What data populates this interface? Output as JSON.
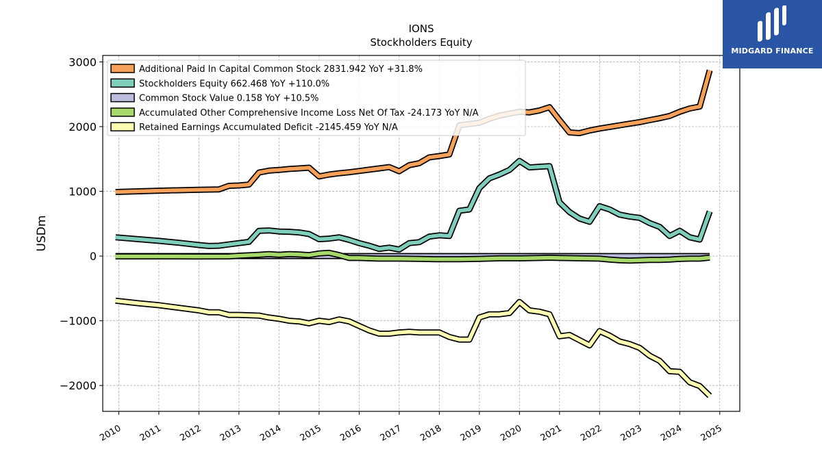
{
  "chart_data": {
    "type": "line",
    "title": "IONS",
    "subtitle": "Stockholders  Equity",
    "ylabel": "USDm",
    "xlabel": "",
    "xlim": [
      2009.6,
      2025.5
    ],
    "ylim": [
      -2400,
      3100
    ],
    "yticks": [
      -2000,
      -1000,
      0,
      1000,
      2000,
      3000
    ],
    "ytick_labels": [
      "−2000",
      "−1000",
      "0",
      "1000",
      "2000",
      "3000"
    ],
    "xticks": [
      2010,
      2011,
      2012,
      2013,
      2014,
      2015,
      2016,
      2017,
      2018,
      2019,
      2020,
      2021,
      2022,
      2023,
      2024,
      2025
    ],
    "xtick_labels": [
      "2010",
      "2011",
      "2012",
      "2013",
      "2014",
      "2015",
      "2016",
      "2017",
      "2018",
      "2019",
      "2020",
      "2021",
      "2022",
      "2023",
      "2024",
      "2025"
    ],
    "grid": true,
    "legend_position": "top-left",
    "series": [
      {
        "name": "Additional Paid In Capital Common Stock  2831.942 YoY +31.8%",
        "color": "#f5a15a",
        "points": [
          [
            2009.92,
            990
          ],
          [
            2011.0,
            1010
          ],
          [
            2012.0,
            1025
          ],
          [
            2012.5,
            1030
          ],
          [
            2012.75,
            1085
          ],
          [
            2013.0,
            1090
          ],
          [
            2013.25,
            1105
          ],
          [
            2013.5,
            1290
          ],
          [
            2013.75,
            1320
          ],
          [
            2014.0,
            1330
          ],
          [
            2014.25,
            1345
          ],
          [
            2014.5,
            1355
          ],
          [
            2014.75,
            1365
          ],
          [
            2015.0,
            1230
          ],
          [
            2015.25,
            1260
          ],
          [
            2015.5,
            1280
          ],
          [
            2015.75,
            1295
          ],
          [
            2016.0,
            1315
          ],
          [
            2016.25,
            1335
          ],
          [
            2016.5,
            1355
          ],
          [
            2016.75,
            1375
          ],
          [
            2017.0,
            1310
          ],
          [
            2017.25,
            1405
          ],
          [
            2017.5,
            1435
          ],
          [
            2017.75,
            1525
          ],
          [
            2018.0,
            1545
          ],
          [
            2018.25,
            1570
          ],
          [
            2018.5,
            2020
          ],
          [
            2018.75,
            2040
          ],
          [
            2019.0,
            2060
          ],
          [
            2019.25,
            2120
          ],
          [
            2019.5,
            2170
          ],
          [
            2019.75,
            2200
          ],
          [
            2020.0,
            2230
          ],
          [
            2020.25,
            2220
          ],
          [
            2020.5,
            2250
          ],
          [
            2020.75,
            2300
          ],
          [
            2021.0,
            2100
          ],
          [
            2021.25,
            1910
          ],
          [
            2021.5,
            1900
          ],
          [
            2021.75,
            1940
          ],
          [
            2022.0,
            1970
          ],
          [
            2022.25,
            1995
          ],
          [
            2022.5,
            2020
          ],
          [
            2022.75,
            2045
          ],
          [
            2023.0,
            2070
          ],
          [
            2023.25,
            2100
          ],
          [
            2023.5,
            2130
          ],
          [
            2023.75,
            2165
          ],
          [
            2024.0,
            2230
          ],
          [
            2024.25,
            2280
          ],
          [
            2024.5,
            2310
          ],
          [
            2024.75,
            2870
          ]
        ]
      },
      {
        "name": "Stockholders Equity  662.468 YoY +110.0%",
        "color": "#7fcdbb",
        "points": [
          [
            2009.92,
            290
          ],
          [
            2010.5,
            260
          ],
          [
            2011.0,
            235
          ],
          [
            2011.5,
            205
          ],
          [
            2012.0,
            170
          ],
          [
            2012.25,
            155
          ],
          [
            2012.5,
            160
          ],
          [
            2012.75,
            180
          ],
          [
            2013.0,
            200
          ],
          [
            2013.25,
            220
          ],
          [
            2013.5,
            390
          ],
          [
            2013.75,
            395
          ],
          [
            2014.0,
            380
          ],
          [
            2014.25,
            375
          ],
          [
            2014.5,
            365
          ],
          [
            2014.75,
            340
          ],
          [
            2015.0,
            260
          ],
          [
            2015.25,
            270
          ],
          [
            2015.5,
            290
          ],
          [
            2015.75,
            250
          ],
          [
            2016.0,
            200
          ],
          [
            2016.25,
            160
          ],
          [
            2016.5,
            110
          ],
          [
            2016.75,
            130
          ],
          [
            2017.0,
            100
          ],
          [
            2017.25,
            200
          ],
          [
            2017.5,
            215
          ],
          [
            2017.75,
            300
          ],
          [
            2018.0,
            320
          ],
          [
            2018.25,
            310
          ],
          [
            2018.5,
            700
          ],
          [
            2018.75,
            720
          ],
          [
            2019.0,
            1050
          ],
          [
            2019.25,
            1200
          ],
          [
            2019.5,
            1260
          ],
          [
            2019.75,
            1330
          ],
          [
            2020.0,
            1470
          ],
          [
            2020.25,
            1370
          ],
          [
            2020.5,
            1380
          ],
          [
            2020.75,
            1390
          ],
          [
            2021.0,
            830
          ],
          [
            2021.25,
            680
          ],
          [
            2021.5,
            580
          ],
          [
            2021.75,
            530
          ],
          [
            2022.0,
            770
          ],
          [
            2022.25,
            720
          ],
          [
            2022.5,
            640
          ],
          [
            2022.75,
            610
          ],
          [
            2023.0,
            590
          ],
          [
            2023.25,
            510
          ],
          [
            2023.5,
            450
          ],
          [
            2023.75,
            310
          ],
          [
            2024.0,
            390
          ],
          [
            2024.25,
            290
          ],
          [
            2024.5,
            255
          ],
          [
            2024.75,
            690
          ]
        ]
      },
      {
        "name": "Common Stock Value  0.158 YoY +10.5%",
        "color": "#bcbddc",
        "points": [
          [
            2009.92,
            0
          ],
          [
            2011.0,
            0
          ],
          [
            2012.0,
            0
          ],
          [
            2013.0,
            0
          ],
          [
            2014.0,
            0
          ],
          [
            2015.0,
            0
          ],
          [
            2016.0,
            0
          ],
          [
            2017.0,
            0
          ],
          [
            2018.0,
            0
          ],
          [
            2019.0,
            0
          ],
          [
            2020.0,
            0
          ],
          [
            2021.0,
            0
          ],
          [
            2022.0,
            0
          ],
          [
            2023.0,
            0
          ],
          [
            2024.0,
            0
          ],
          [
            2024.75,
            0
          ]
        ]
      },
      {
        "name": "Accumulated Other Comprehensive Income Loss Net Of Tax  -24.173 YoY N/A",
        "color": "#a6d96a",
        "points": [
          [
            2009.92,
            -5
          ],
          [
            2011.0,
            -5
          ],
          [
            2012.0,
            -8
          ],
          [
            2012.75,
            -5
          ],
          [
            2013.0,
            5
          ],
          [
            2013.5,
            20
          ],
          [
            2013.75,
            30
          ],
          [
            2014.0,
            20
          ],
          [
            2014.25,
            30
          ],
          [
            2014.5,
            25
          ],
          [
            2014.75,
            15
          ],
          [
            2015.0,
            40
          ],
          [
            2015.25,
            50
          ],
          [
            2015.5,
            15
          ],
          [
            2015.75,
            -30
          ],
          [
            2016.0,
            -30
          ],
          [
            2016.5,
            -40
          ],
          [
            2017.0,
            -40
          ],
          [
            2017.5,
            -45
          ],
          [
            2018.0,
            -50
          ],
          [
            2018.5,
            -50
          ],
          [
            2019.0,
            -45
          ],
          [
            2019.5,
            -35
          ],
          [
            2020.0,
            -35
          ],
          [
            2020.5,
            -30
          ],
          [
            2020.75,
            -25
          ],
          [
            2021.0,
            -30
          ],
          [
            2021.5,
            -35
          ],
          [
            2022.0,
            -40
          ],
          [
            2022.25,
            -55
          ],
          [
            2022.5,
            -65
          ],
          [
            2022.75,
            -70
          ],
          [
            2023.0,
            -65
          ],
          [
            2023.25,
            -60
          ],
          [
            2023.5,
            -60
          ],
          [
            2023.75,
            -55
          ],
          [
            2024.0,
            -45
          ],
          [
            2024.25,
            -40
          ],
          [
            2024.5,
            -40
          ],
          [
            2024.75,
            -24
          ]
        ]
      },
      {
        "name": "Retained Earnings Accumulated Deficit  -2145.459 YoY N/A",
        "color": "#ffffb3",
        "points": [
          [
            2009.92,
            -690
          ],
          [
            2010.5,
            -730
          ],
          [
            2011.0,
            -760
          ],
          [
            2011.5,
            -800
          ],
          [
            2012.0,
            -840
          ],
          [
            2012.25,
            -870
          ],
          [
            2012.5,
            -870
          ],
          [
            2012.75,
            -910
          ],
          [
            2013.0,
            -910
          ],
          [
            2013.5,
            -920
          ],
          [
            2013.75,
            -950
          ],
          [
            2014.0,
            -970
          ],
          [
            2014.25,
            -1000
          ],
          [
            2014.5,
            -1010
          ],
          [
            2014.75,
            -1040
          ],
          [
            2015.0,
            -1000
          ],
          [
            2015.25,
            -1020
          ],
          [
            2015.5,
            -980
          ],
          [
            2015.75,
            -1010
          ],
          [
            2016.0,
            -1080
          ],
          [
            2016.25,
            -1150
          ],
          [
            2016.5,
            -1200
          ],
          [
            2016.75,
            -1200
          ],
          [
            2017.0,
            -1180
          ],
          [
            2017.25,
            -1170
          ],
          [
            2017.5,
            -1180
          ],
          [
            2017.75,
            -1180
          ],
          [
            2018.0,
            -1180
          ],
          [
            2018.25,
            -1250
          ],
          [
            2018.5,
            -1290
          ],
          [
            2018.75,
            -1290
          ],
          [
            2019.0,
            -950
          ],
          [
            2019.25,
            -900
          ],
          [
            2019.5,
            -900
          ],
          [
            2019.75,
            -880
          ],
          [
            2020.0,
            -710
          ],
          [
            2020.25,
            -840
          ],
          [
            2020.5,
            -860
          ],
          [
            2020.75,
            -900
          ],
          [
            2021.0,
            -1240
          ],
          [
            2021.25,
            -1220
          ],
          [
            2021.5,
            -1300
          ],
          [
            2021.75,
            -1380
          ],
          [
            2022.0,
            -1160
          ],
          [
            2022.25,
            -1230
          ],
          [
            2022.5,
            -1320
          ],
          [
            2022.75,
            -1360
          ],
          [
            2023.0,
            -1420
          ],
          [
            2023.25,
            -1540
          ],
          [
            2023.5,
            -1620
          ],
          [
            2023.75,
            -1780
          ],
          [
            2024.0,
            -1790
          ],
          [
            2024.25,
            -1950
          ],
          [
            2024.5,
            -2010
          ],
          [
            2024.75,
            -2160
          ]
        ]
      }
    ]
  },
  "logo": {
    "name": "MIDGARD FINANCE"
  }
}
